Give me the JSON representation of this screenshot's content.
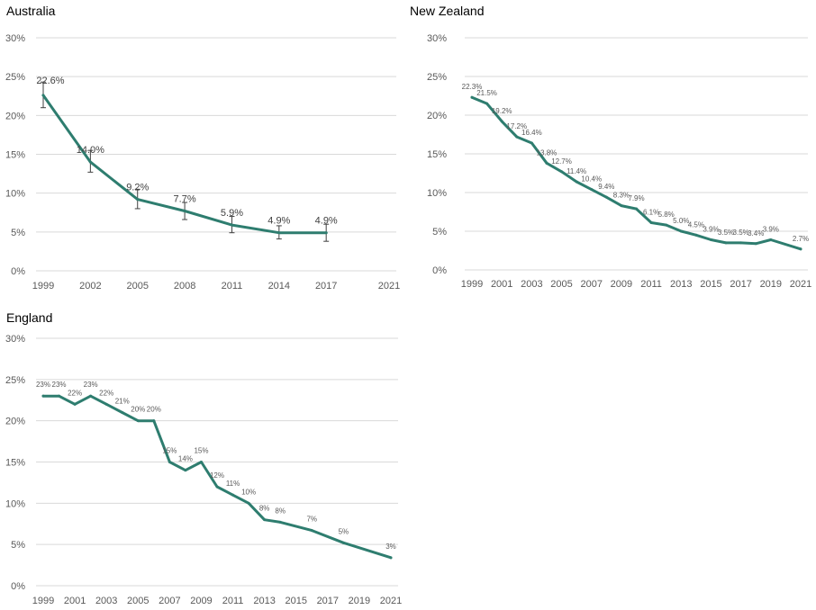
{
  "chart_data": [
    {
      "id": "au",
      "type": "line",
      "title": "Australia",
      "xlabel": "",
      "ylabel": "",
      "ylim": [
        0,
        30
      ],
      "y_ticks": [
        "0%",
        "5%",
        "10%",
        "15%",
        "20%",
        "25%",
        "30%"
      ],
      "x_range": [
        1999,
        2021
      ],
      "x_ticks": [
        "1999",
        "2002",
        "2005",
        "2008",
        "2011",
        "2014",
        "2017",
        "2021"
      ],
      "grid": true,
      "line_color": "#2e7d6f",
      "series": [
        {
          "name": "Australia",
          "x": [
            1999,
            2002,
            2005,
            2008,
            2011,
            2014,
            2017
          ],
          "values": [
            22.6,
            14.0,
            9.2,
            7.7,
            5.9,
            4.9,
            4.9
          ],
          "labels": [
            "22.6%",
            "14.0%",
            "9.2%",
            "7.7%",
            "5.9%",
            "4.9%",
            "4.9%"
          ],
          "error_low": [
            21.0,
            12.7,
            8.0,
            6.6,
            4.9,
            4.1,
            3.8
          ],
          "error_high": [
            24.3,
            15.5,
            10.5,
            8.8,
            7.0,
            5.8,
            6.0
          ]
        }
      ]
    },
    {
      "id": "nz",
      "type": "line",
      "title": "New Zealand",
      "xlabel": "",
      "ylabel": "",
      "ylim": [
        0,
        30
      ],
      "y_ticks": [
        "0%",
        "5%",
        "10%",
        "15%",
        "20%",
        "25%",
        "30%"
      ],
      "x_range": [
        1999,
        2021
      ],
      "x_ticks": [
        "1999",
        "2001",
        "2003",
        "2005",
        "2007",
        "2009",
        "2011",
        "2013",
        "2015",
        "2017",
        "2019",
        "2021"
      ],
      "grid": true,
      "line_color": "#2e7d6f",
      "series": [
        {
          "name": "New Zealand",
          "x": [
            1999,
            2000,
            2001,
            2002,
            2003,
            2004,
            2005,
            2006,
            2007,
            2008,
            2009,
            2010,
            2011,
            2012,
            2013,
            2014,
            2015,
            2016,
            2017,
            2018,
            2019,
            2021
          ],
          "values": [
            22.3,
            21.5,
            19.2,
            17.2,
            16.4,
            13.8,
            12.7,
            11.4,
            10.4,
            9.4,
            8.3,
            7.9,
            6.1,
            5.8,
            5.0,
            4.5,
            3.9,
            3.5,
            3.5,
            3.4,
            3.9,
            2.7
          ],
          "labels": [
            "22.3%",
            "21.5%",
            "19.2%",
            "17.2%",
            "16.4%",
            "13.8%",
            "12.7%",
            "11.4%",
            "10.4%",
            "9.4%",
            "8.3%",
            "7.9%",
            "6.1%",
            "5.8%",
            "5.0%",
            "4.5%",
            "3.9%",
            "3.5%",
            "3.5%",
            "3.4%",
            "3.9%",
            "2.7%"
          ]
        }
      ]
    },
    {
      "id": "en",
      "type": "line",
      "title": "England",
      "xlabel": "",
      "ylabel": "",
      "ylim": [
        0,
        30
      ],
      "y_ticks": [
        "0%",
        "5%",
        "10%",
        "15%",
        "20%",
        "25%",
        "30%"
      ],
      "x_range": [
        1999,
        2021
      ],
      "x_ticks": [
        "1999",
        "2001",
        "2003",
        "2005",
        "2007",
        "2009",
        "2011",
        "2013",
        "2015",
        "2017",
        "2019",
        "2021"
      ],
      "grid": true,
      "line_color": "#2e7d6f",
      "series": [
        {
          "name": "England",
          "x": [
            1999,
            2000,
            2001,
            2002,
            2003,
            2004,
            2005,
            2006,
            2007,
            2008,
            2009,
            2010,
            2011,
            2012,
            2013,
            2014,
            2016,
            2018,
            2021
          ],
          "values": [
            23,
            23,
            22,
            23,
            22,
            21,
            20,
            20,
            15,
            14,
            15,
            12,
            11,
            10,
            8,
            7.7,
            6.7,
            5.2,
            3.4
          ],
          "labels": [
            "23%",
            "23%",
            "22%",
            "23%",
            "22%",
            "21%",
            "20%",
            "20%",
            "15%",
            "14%",
            "15%",
            "12%",
            "11%",
            "10%",
            "8%",
            "8%",
            "7%",
            "5%",
            "3%"
          ]
        }
      ]
    }
  ]
}
